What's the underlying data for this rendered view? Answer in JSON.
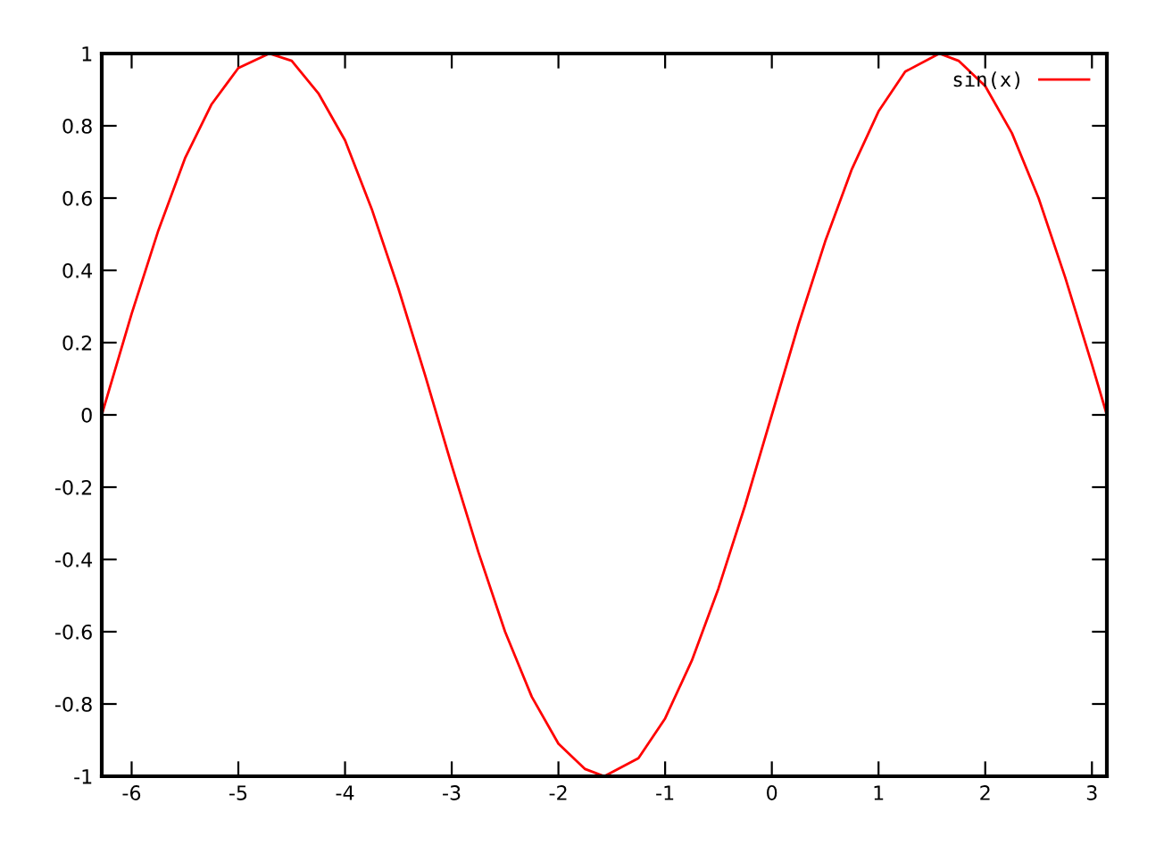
{
  "chart_data": {
    "type": "line",
    "x": [
      -6.28,
      -6.0,
      -5.75,
      -5.5,
      -5.25,
      -5.0,
      -4.71,
      -4.5,
      -4.25,
      -4.0,
      -3.75,
      -3.5,
      -3.25,
      -3.0,
      -2.75,
      -2.5,
      -2.25,
      -2.0,
      -1.75,
      -1.57,
      -1.25,
      -1.0,
      -0.75,
      -0.5,
      -0.25,
      0.0,
      0.25,
      0.5,
      0.75,
      1.0,
      1.25,
      1.57,
      1.75,
      2.0,
      2.25,
      2.5,
      2.75,
      3.0,
      3.14
    ],
    "series": [
      {
        "name": "sin(x)",
        "color": "#ff0000",
        "values": [
          0.0,
          0.28,
          0.51,
          0.71,
          0.86,
          0.96,
          1.0,
          0.98,
          0.89,
          0.76,
          0.57,
          0.35,
          0.11,
          -0.14,
          -0.38,
          -0.6,
          -0.78,
          -0.91,
          -0.98,
          -1.0,
          -0.95,
          -0.84,
          -0.68,
          -0.48,
          -0.25,
          0.0,
          0.25,
          0.48,
          0.68,
          0.84,
          0.95,
          1.0,
          0.98,
          0.91,
          0.78,
          0.6,
          0.38,
          0.14,
          0.0
        ]
      }
    ],
    "xlim": [
      -6.28,
      3.14
    ],
    "ylim": [
      -1,
      1
    ],
    "xticks": [
      -6,
      -5,
      -4,
      -3,
      -2,
      -1,
      0,
      1,
      2,
      3
    ],
    "yticks": [
      -1,
      -0.8,
      -0.6,
      -0.4,
      -0.2,
      0,
      0.2,
      0.4,
      0.6,
      0.8,
      1
    ],
    "grid": false,
    "legend": "top right",
    "line_style": "solid",
    "marker": "none"
  }
}
